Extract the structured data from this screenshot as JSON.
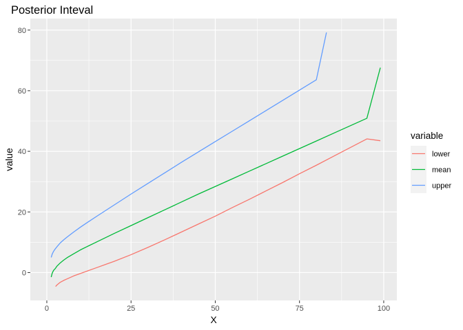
{
  "chart_data": {
    "type": "line",
    "title": "Posterior Inteval",
    "xlabel": "X",
    "ylabel": "value",
    "xlim": [
      -4.9,
      103.9
    ],
    "ylim": [
      -9.2,
      83.8
    ],
    "x_ticks": [
      0,
      25,
      50,
      75,
      100
    ],
    "y_ticks": [
      0,
      20,
      40,
      60,
      80
    ],
    "grid": true,
    "legend": {
      "title": "variable",
      "placement": "right"
    },
    "series": [
      {
        "name": "lower",
        "color": "#F8766D",
        "points": [
          [
            2.6,
            -4.6
          ],
          [
            3,
            -4.1
          ],
          [
            4,
            -3.2
          ],
          [
            5,
            -2.6
          ],
          [
            6,
            -2.1
          ],
          [
            8,
            -1.1
          ],
          [
            10,
            -0.3
          ],
          [
            12,
            0.5
          ],
          [
            15,
            1.7
          ],
          [
            18,
            2.9
          ],
          [
            20,
            3.7
          ],
          [
            25,
            5.9
          ],
          [
            30,
            8.3
          ],
          [
            35,
            10.8
          ],
          [
            40,
            13.4
          ],
          [
            45,
            16
          ],
          [
            50,
            18.6
          ],
          [
            55,
            21.4
          ],
          [
            60,
            24.1
          ],
          [
            65,
            26.9
          ],
          [
            70,
            29.7
          ],
          [
            75,
            32.6
          ],
          [
            80,
            35.4
          ],
          [
            85,
            38.3
          ],
          [
            90,
            41.2
          ],
          [
            95,
            44.1
          ],
          [
            99,
            43.5
          ]
        ]
      },
      {
        "name": "mean",
        "color": "#00BA38",
        "points": [
          [
            1.3,
            -1.5
          ],
          [
            1.6,
            -0.2
          ],
          [
            2,
            0.7
          ],
          [
            2.5,
            1.3
          ],
          [
            3,
            2.1
          ],
          [
            4,
            3.2
          ],
          [
            5,
            4.1
          ],
          [
            6,
            4.9
          ],
          [
            8,
            6.2
          ],
          [
            10,
            7.5
          ],
          [
            12,
            8.6
          ],
          [
            15,
            10.2
          ],
          [
            20,
            12.9
          ],
          [
            25,
            15.5
          ],
          [
            30,
            18.1
          ],
          [
            35,
            20.7
          ],
          [
            40,
            23.3
          ],
          [
            45,
            25.9
          ],
          [
            50,
            28.4
          ],
          [
            55,
            30.9
          ],
          [
            60,
            33.4
          ],
          [
            65,
            35.9
          ],
          [
            70,
            38.4
          ],
          [
            75,
            40.9
          ],
          [
            80,
            43.4
          ],
          [
            85,
            45.9
          ],
          [
            90,
            48.4
          ],
          [
            95,
            50.9
          ],
          [
            99,
            67.6
          ]
        ]
      },
      {
        "name": "upper",
        "color": "#619CFF",
        "points": [
          [
            1.3,
            5
          ],
          [
            1.6,
            6.1
          ],
          [
            2,
            7
          ],
          [
            2.5,
            7.8
          ],
          [
            3,
            8.5
          ],
          [
            4,
            9.8
          ],
          [
            5,
            10.8
          ],
          [
            6,
            11.7
          ],
          [
            8,
            13.4
          ],
          [
            10,
            15
          ],
          [
            12,
            16.5
          ],
          [
            15,
            18.7
          ],
          [
            20,
            22.3
          ],
          [
            25,
            25.9
          ],
          [
            30,
            29.4
          ],
          [
            35,
            32.9
          ],
          [
            40,
            36.4
          ],
          [
            45,
            39.8
          ],
          [
            50,
            43.2
          ],
          [
            55,
            46.6
          ],
          [
            60,
            50
          ],
          [
            65,
            53.4
          ],
          [
            70,
            56.8
          ],
          [
            75,
            60.2
          ],
          [
            80,
            63.6
          ],
          [
            83,
            79.2
          ]
        ]
      }
    ]
  }
}
